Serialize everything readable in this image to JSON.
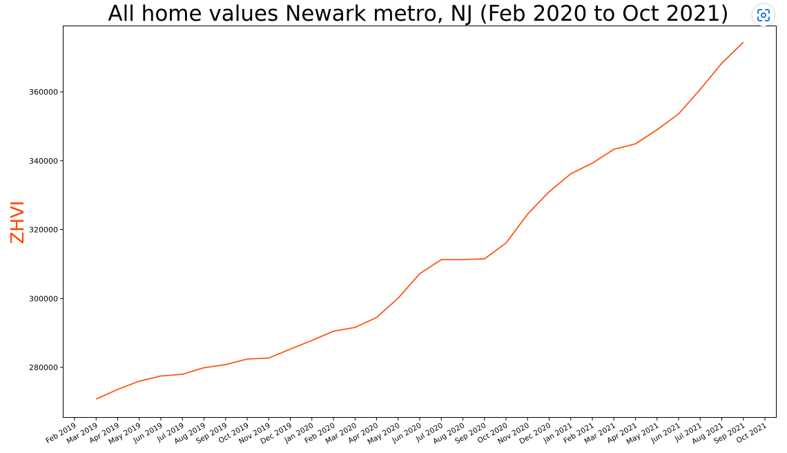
{
  "chart_data": {
    "type": "line",
    "title": "All home values Newark metro, NJ (Feb 2020 to Oct 2021)",
    "xlabel": "",
    "ylabel": "ZHVI",
    "ylabel_color": "#ff4500",
    "line_color": "#ff5511",
    "grid": false,
    "ylim": [
      265000,
      380000
    ],
    "yticks": [
      280000,
      300000,
      320000,
      340000,
      360000
    ],
    "categories": [
      "Feb 2019",
      "Mar 2019",
      "Apr 2019",
      "May 2019",
      "Jun 2019",
      "Jul 2019",
      "Aug 2019",
      "Sep 2019",
      "Oct 2019",
      "Nov 2019",
      "Dec 2019",
      "Jan 2020",
      "Feb 2020",
      "Mar 2020",
      "Apr 2020",
      "May 2020",
      "Jun 2020",
      "Jul 2020",
      "Aug 2020",
      "Sep 2020",
      "Oct 2020",
      "Nov 2020",
      "Dec 2020",
      "Jan 2021",
      "Feb 2021",
      "Mar 2021",
      "Apr 2021",
      "May 2021",
      "Jun 2021",
      "Jul 2021",
      "Aug 2021",
      "Sep 2021",
      "Oct 2021"
    ],
    "series": [
      {
        "x": [
          "Mar 2019",
          "Apr 2019",
          "May 2019",
          "Jun 2019",
          "Jul 2019",
          "Aug 2019",
          "Sep 2019",
          "Oct 2019",
          "Nov 2019",
          "Dec 2019",
          "Jan 2020",
          "Feb 2020",
          "Mar 2020",
          "Apr 2020",
          "May 2020",
          "Jun 2020",
          "Jul 2020",
          "Aug 2020",
          "Sep 2020",
          "Oct 2020",
          "Nov 2020",
          "Dec 2020",
          "Jan 2021",
          "Feb 2021",
          "Mar 2021",
          "Apr 2021",
          "May 2021",
          "Jun 2021",
          "Jul 2021",
          "Aug 2021",
          "Sep 2021"
        ],
        "values": [
          270800,
          273600,
          276000,
          277500,
          278000,
          279900,
          280800,
          282400,
          282700,
          285300,
          287800,
          290500,
          291600,
          294500,
          300100,
          307200,
          311300,
          311300,
          311500,
          316100,
          324500,
          331000,
          336200,
          339300,
          343300,
          344900,
          349000,
          353600,
          360700,
          368300,
          374400
        ]
      }
    ]
  }
}
